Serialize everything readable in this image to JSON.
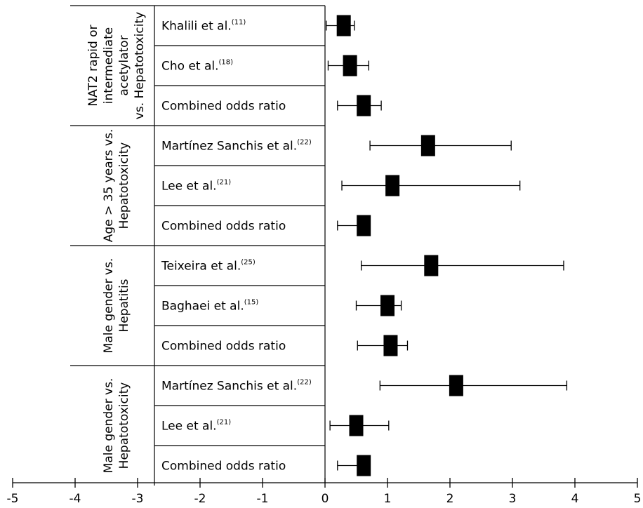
{
  "chart_data": {
    "type": "forest",
    "title": "",
    "xlabel": "",
    "ylabel": "",
    "xlim": [
      -5,
      5
    ],
    "x_ticks": [
      -5,
      -4,
      -3,
      -2,
      -1,
      0,
      1,
      2,
      3,
      4,
      5
    ],
    "grid": false,
    "groups": [
      {
        "label_lines": [
          "NAT2 rapid or",
          "intermediate",
          "acetylator",
          "vs. Hepatotoxicity"
        ],
        "rows": [
          {
            "study": "Khalili et al.",
            "ref": "(11)",
            "estimate": 0.3,
            "ci_low": 0.02,
            "ci_high": 0.47
          },
          {
            "study": "Cho et al.",
            "ref": "(18)",
            "estimate": 0.4,
            "ci_low": 0.05,
            "ci_high": 0.7
          },
          {
            "study": "Combined odds ratio",
            "ref": "",
            "estimate": 0.62,
            "ci_low": 0.2,
            "ci_high": 0.9
          }
        ]
      },
      {
        "label_lines": [
          "Age > 35 years vs.",
          "Hepatotoxicity"
        ],
        "rows": [
          {
            "study": "Martínez Sanchis et al.",
            "ref": "(22)",
            "estimate": 1.65,
            "ci_low": 0.72,
            "ci_high": 2.98
          },
          {
            "study": "Lee et al.",
            "ref": "(21)",
            "estimate": 1.08,
            "ci_low": 0.27,
            "ci_high": 3.12
          },
          {
            "study": "Combined odds ratio",
            "ref": "",
            "estimate": 0.62,
            "ci_low": 0.2,
            "ci_high": 0.72
          }
        ]
      },
      {
        "label_lines": [
          "Male gender vs.",
          "Hepatitis"
        ],
        "rows": [
          {
            "study": "Teixeira et al.",
            "ref": "(25)",
            "estimate": 1.7,
            "ci_low": 0.58,
            "ci_high": 3.82
          },
          {
            "study": "Baghaei et al.",
            "ref": "(15)",
            "estimate": 1.0,
            "ci_low": 0.5,
            "ci_high": 1.22
          },
          {
            "study": "Combined odds ratio",
            "ref": "",
            "estimate": 1.05,
            "ci_low": 0.52,
            "ci_high": 1.32
          }
        ]
      },
      {
        "label_lines": [
          "Male gender vs.",
          "Hepatotoxicity"
        ],
        "rows": [
          {
            "study": "Martínez Sanchis et al.",
            "ref": "(22)",
            "estimate": 2.1,
            "ci_low": 0.88,
            "ci_high": 3.87
          },
          {
            "study": "Lee et al.",
            "ref": "(21)",
            "estimate": 0.5,
            "ci_low": 0.08,
            "ci_high": 1.02
          },
          {
            "study": "Combined odds ratio",
            "ref": "",
            "estimate": 0.62,
            "ci_low": 0.2,
            "ci_high": 0.72
          }
        ]
      }
    ]
  }
}
